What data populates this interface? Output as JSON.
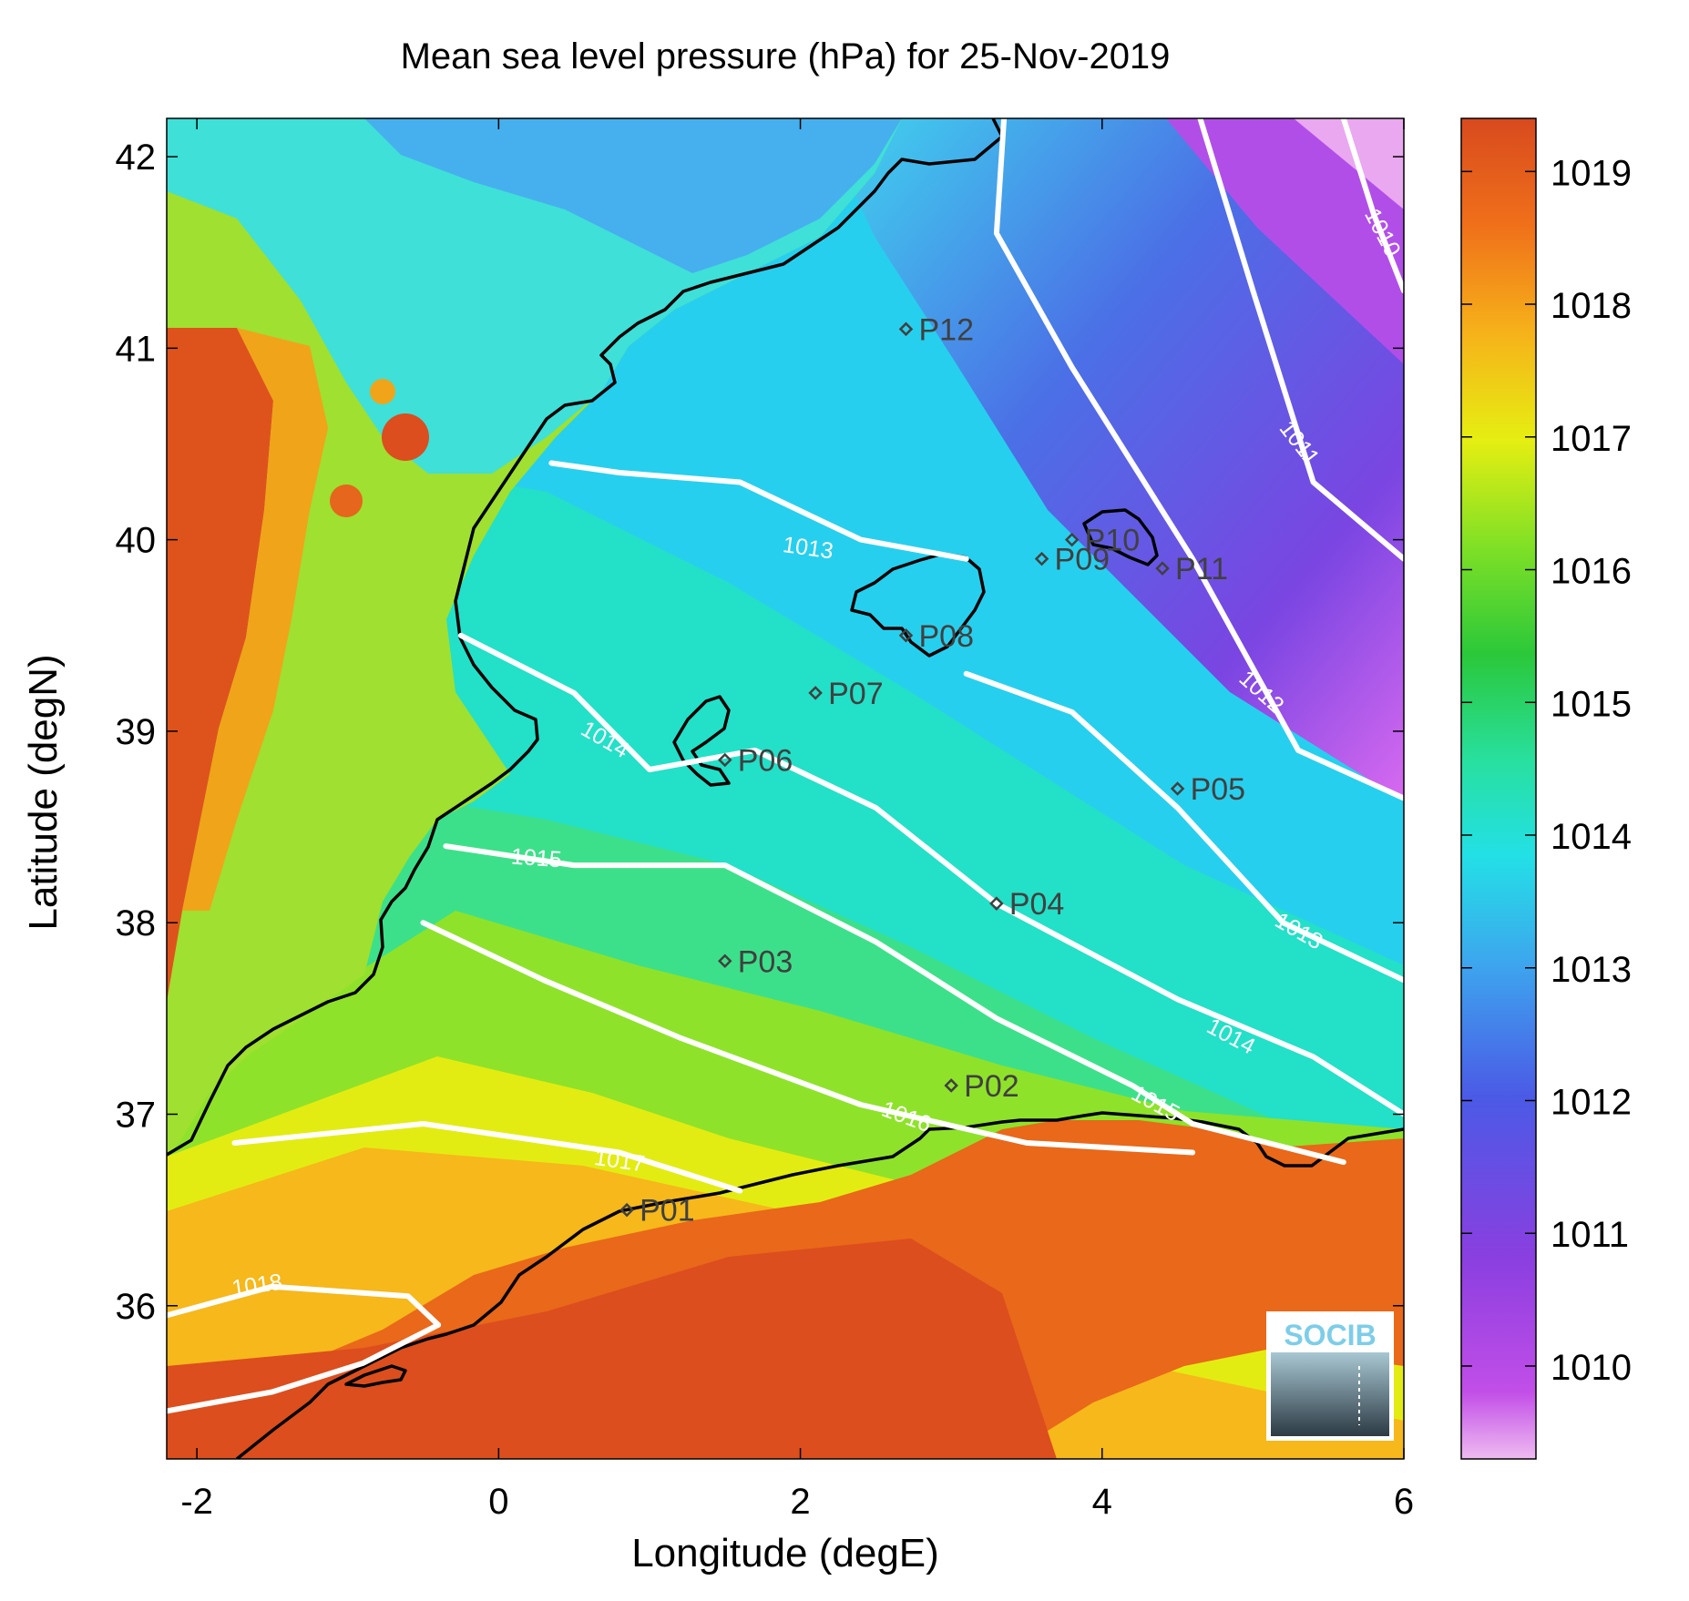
{
  "title": "Mean sea level pressure (hPa) for 25-Nov-2019",
  "xlabel": "Longitude (degE)",
  "ylabel": "Latitude (degN)",
  "x_ticks": [
    "-2",
    "0",
    "2",
    "4",
    "6"
  ],
  "y_ticks": [
    "36",
    "37",
    "38",
    "39",
    "40",
    "41",
    "42"
  ],
  "colorbar_ticks": [
    "1010",
    "1011",
    "1012",
    "1013",
    "1014",
    "1015",
    "1016",
    "1017",
    "1018",
    "1019"
  ],
  "logo": "SOCIB",
  "colors": {
    "contour": "#ffffff",
    "coastline": "#000000",
    "station": "#404040",
    "low": "#e6a0f0",
    "high": "#d84a1e"
  },
  "chart_data": {
    "type": "heatmap",
    "variable": "Mean sea level pressure (hPa)",
    "date": "25-Nov-2019",
    "xlim": [
      -2.2,
      6
    ],
    "ylim": [
      35.2,
      42.2
    ],
    "colorbar_range": [
      1009.3,
      1019.4
    ],
    "stations": [
      {
        "name": "P01",
        "lon": 0.85,
        "lat": 36.5
      },
      {
        "name": "P02",
        "lon": 3.0,
        "lat": 37.15
      },
      {
        "name": "P03",
        "lon": 1.5,
        "lat": 37.8
      },
      {
        "name": "P04",
        "lon": 3.3,
        "lat": 38.1
      },
      {
        "name": "P05",
        "lon": 4.5,
        "lat": 38.7
      },
      {
        "name": "P06",
        "lon": 1.5,
        "lat": 38.85
      },
      {
        "name": "P07",
        "lon": 2.1,
        "lat": 39.2
      },
      {
        "name": "P08",
        "lon": 2.7,
        "lat": 39.5
      },
      {
        "name": "P09",
        "lon": 3.6,
        "lat": 39.9
      },
      {
        "name": "P10",
        "lon": 3.8,
        "lat": 40.0
      },
      {
        "name": "P11",
        "lon": 4.4,
        "lat": 39.85
      },
      {
        "name": "P12",
        "lon": 2.7,
        "lat": 41.1
      }
    ],
    "contours": [
      {
        "level": "1010",
        "points": [
          [
            5.6,
            42.2
          ],
          [
            5.8,
            41.7
          ],
          [
            6.0,
            41.3
          ]
        ],
        "label_at": [
          5.85,
          41.6
        ],
        "label_angle": 62
      },
      {
        "level": "1011",
        "points": [
          [
            4.65,
            42.2
          ],
          [
            5.0,
            41.3
          ],
          [
            5.4,
            40.3
          ],
          [
            6.0,
            39.9
          ]
        ],
        "label_at": [
          5.3,
          40.5
        ],
        "label_angle": 52
      },
      {
        "level": "1012",
        "points": [
          [
            3.35,
            42.2
          ],
          [
            3.3,
            41.6
          ],
          [
            3.8,
            40.9
          ],
          [
            4.6,
            39.9
          ],
          [
            5.3,
            38.9
          ],
          [
            6.0,
            38.65
          ]
        ],
        "label_at": [
          5.05,
          39.2
        ],
        "label_angle": 42
      },
      {
        "level": "1013",
        "points": [
          [
            0.35,
            40.4
          ],
          [
            0.8,
            40.35
          ],
          [
            1.6,
            40.3
          ],
          [
            2.4,
            40.0
          ],
          [
            3.1,
            39.9
          ]
        ],
        "label_at": [
          2.05,
          39.95
        ],
        "label_angle": 8
      },
      {
        "level": "1013",
        "points": [
          [
            3.1,
            39.3
          ],
          [
            3.8,
            39.1
          ],
          [
            4.5,
            38.6
          ],
          [
            5.2,
            38.0
          ],
          [
            6.0,
            37.7
          ]
        ],
        "label_at": [
          5.3,
          37.95
        ],
        "label_angle": 30
      },
      {
        "level": "1014",
        "points": [
          [
            -0.25,
            39.5
          ],
          [
            0.5,
            39.2
          ],
          [
            1.0,
            38.8
          ],
          [
            1.7,
            38.9
          ],
          [
            2.5,
            38.6
          ],
          [
            3.3,
            38.1
          ],
          [
            4.5,
            37.6
          ],
          [
            5.4,
            37.3
          ],
          [
            6.0,
            37.0
          ]
        ],
        "label_at": [
          0.7,
          38.95
        ],
        "label_angle": 30
      },
      {
        "level": "1014",
        "points": [],
        "label_at": [
          4.85,
          37.4
        ],
        "label_angle": 28
      },
      {
        "level": "1015",
        "points": [
          [
            -0.35,
            38.4
          ],
          [
            0.5,
            38.3
          ],
          [
            1.5,
            38.3
          ],
          [
            2.5,
            37.9
          ],
          [
            3.3,
            37.5
          ],
          [
            4.2,
            37.15
          ],
          [
            4.6,
            36.95
          ],
          [
            5.6,
            36.75
          ]
        ],
        "label_at": [
          0.25,
          38.33
        ],
        "label_angle": 4
      },
      {
        "level": "1015",
        "points": [],
        "label_at": [
          4.35,
          37.05
        ],
        "label_angle": 28
      },
      {
        "level": "1016",
        "points": [
          [
            -0.5,
            38.0
          ],
          [
            0.3,
            37.7
          ],
          [
            1.2,
            37.4
          ],
          [
            2.4,
            37.05
          ],
          [
            3.5,
            36.85
          ],
          [
            4.6,
            36.8
          ]
        ],
        "label_at": [
          2.7,
          36.98
        ],
        "label_angle": 20
      },
      {
        "level": "1017",
        "points": [
          [
            -1.75,
            36.85
          ],
          [
            -0.5,
            36.95
          ],
          [
            0.8,
            36.8
          ],
          [
            1.6,
            36.6
          ]
        ],
        "label_at": [
          0.8,
          36.75
        ],
        "label_angle": 8
      },
      {
        "level": "1018",
        "points": [
          [
            -2.2,
            35.95
          ],
          [
            -1.5,
            36.1
          ],
          [
            -0.6,
            36.05
          ],
          [
            -0.4,
            35.9
          ]
        ],
        "label_at": [
          -1.6,
          36.1
        ],
        "label_angle": -8
      },
      {
        "level": "1018",
        "points": [
          [
            -2.2,
            35.45
          ],
          [
            -1.5,
            35.55
          ],
          [
            -0.9,
            35.7
          ],
          [
            -0.4,
            35.9
          ]
        ],
        "label_at": null,
        "label_angle": 0
      }
    ]
  }
}
